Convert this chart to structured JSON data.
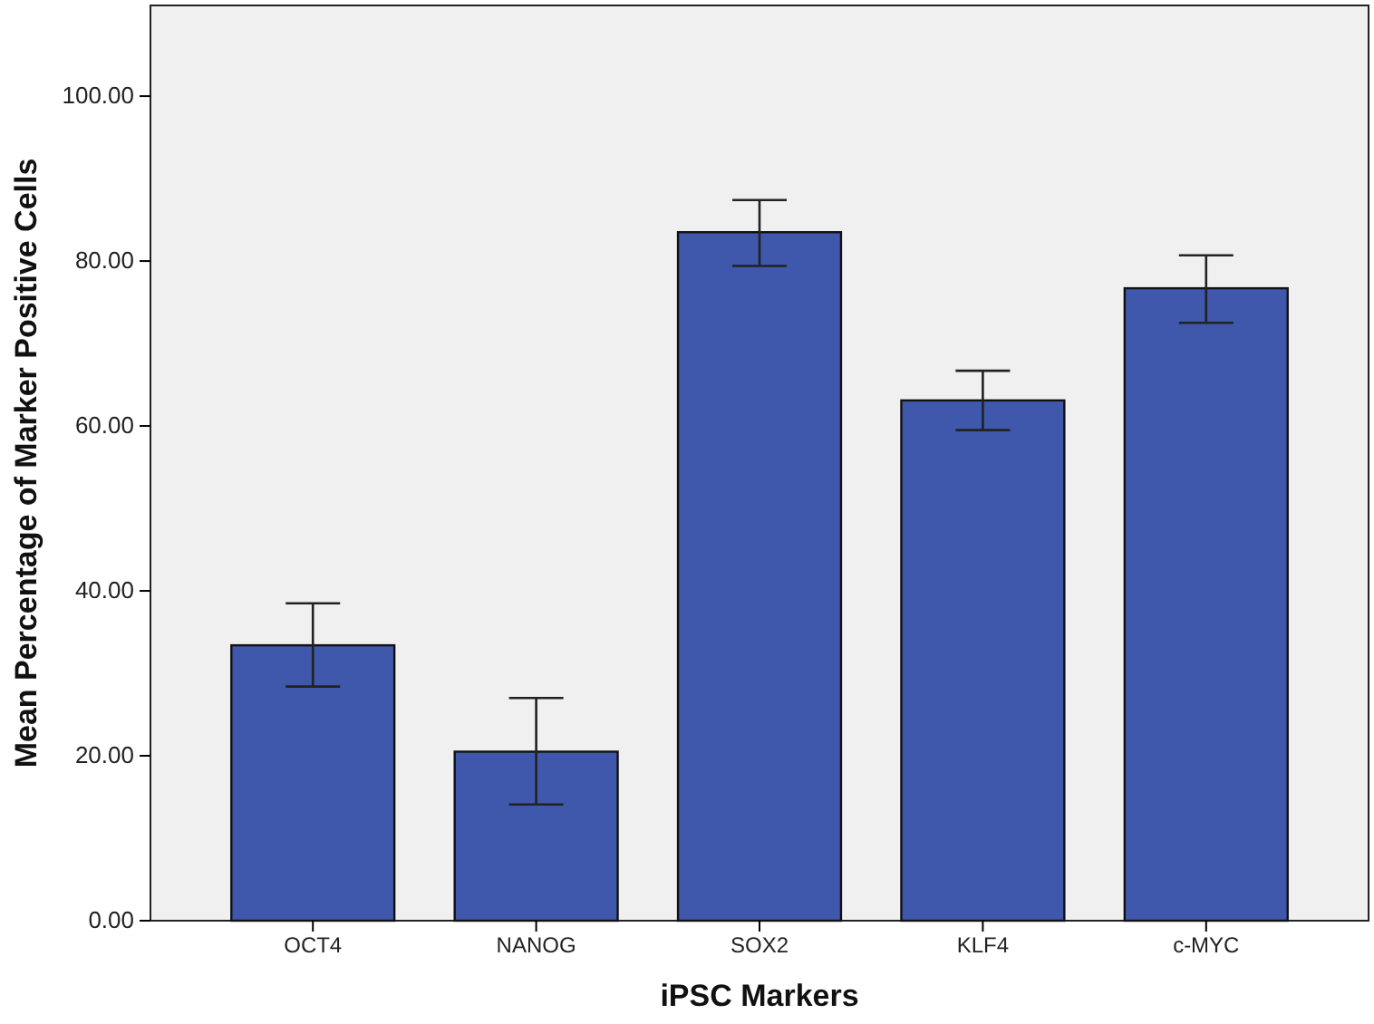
{
  "chart_data": {
    "type": "bar",
    "xlabel": "iPSC Markers",
    "ylabel": "Mean Percentage of Marker Positive Cells",
    "categories": [
      "OCT4",
      "NANOG",
      "SOX2",
      "KLF4",
      "c-MYC"
    ],
    "values": [
      33.4,
      20.5,
      83.5,
      63.1,
      76.7
    ],
    "errors": [
      [
        28.4,
        38.5
      ],
      [
        14.1,
        27.0
      ],
      [
        79.4,
        87.4
      ],
      [
        59.5,
        66.7
      ],
      [
        72.5,
        80.7
      ]
    ],
    "color": "#3f58ab",
    "ylim": [
      0,
      111
    ],
    "yticks": [
      {
        "value": 0,
        "label": "0.00"
      },
      {
        "value": 20,
        "label": "20.00"
      },
      {
        "value": 40,
        "label": "40.00"
      },
      {
        "value": 60,
        "label": "60.00"
      },
      {
        "value": 80,
        "label": "80.00"
      },
      {
        "value": 100,
        "label": "100.00"
      }
    ],
    "grid": false
  }
}
